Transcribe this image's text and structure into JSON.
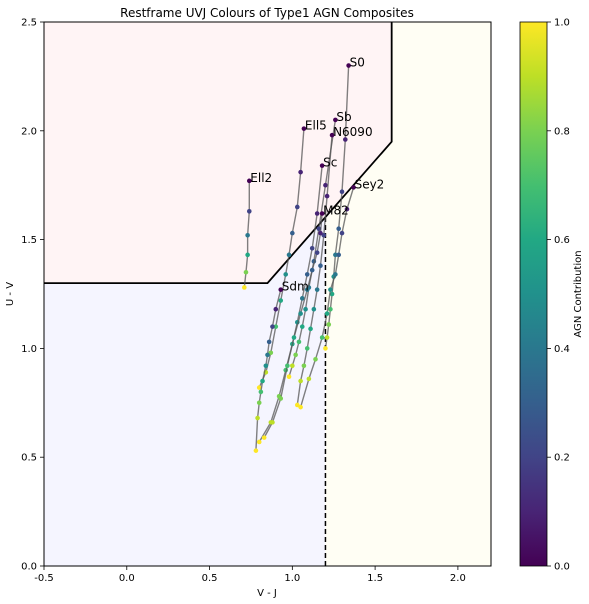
{
  "chart_data": {
    "type": "scatter",
    "title": "Restframe UVJ Colours of Type1 AGN Composites",
    "xlabel": "V - J",
    "ylabel": "U - V",
    "xlim": [
      -0.5,
      2.2
    ],
    "ylim": [
      0.0,
      2.5
    ],
    "xticks": [
      "-0.5",
      "0.0",
      "0.5",
      "1.0",
      "1.5",
      "2.0"
    ],
    "yticks": [
      "0.0",
      "0.5",
      "1.0",
      "1.5",
      "2.0",
      "2.5"
    ],
    "grid": false,
    "colorbar": {
      "label": "AGN Contribution",
      "range": [
        0.0,
        1.0
      ],
      "ticks": [
        "0.0",
        "0.2",
        "0.4",
        "0.6",
        "0.8",
        "1.0"
      ],
      "colormap": "viridis"
    },
    "regions": {
      "quiescent_boundary": [
        [
          -0.5,
          1.3
        ],
        [
          0.85,
          1.3
        ],
        [
          1.6,
          1.95
        ],
        [
          1.6,
          2.5
        ]
      ],
      "divider_line": {
        "x": 1.2,
        "y_range": [
          0.0,
          1.6
        ]
      },
      "colors": {
        "quiescent": "#fff4f5",
        "star_forming": "#f5f5ff",
        "dusty": "#fffef4"
      }
    },
    "series": [
      {
        "name": "S0",
        "label": "S0",
        "x": [
          1.34,
          1.32,
          1.3,
          1.28,
          1.26,
          1.25,
          1.24,
          1.23,
          1.22,
          1.21,
          1.2
        ],
        "y": [
          2.3,
          1.96,
          1.72,
          1.55,
          1.43,
          1.33,
          1.25,
          1.18,
          1.11,
          1.05,
          1.0
        ]
      },
      {
        "name": "Sb",
        "label": "Sb",
        "x": [
          1.26,
          1.2,
          1.16,
          1.13,
          1.1,
          1.08,
          1.06,
          1.04,
          1.02,
          1.0,
          0.98
        ],
        "y": [
          2.05,
          1.75,
          1.55,
          1.4,
          1.28,
          1.18,
          1.1,
          1.03,
          0.97,
          0.92,
          0.87
        ]
      },
      {
        "name": "N6090",
        "label": "N6090",
        "x": [
          1.24,
          1.21,
          1.19,
          1.17,
          1.15,
          1.13,
          1.11,
          1.09,
          1.07,
          1.05,
          1.03
        ],
        "y": [
          1.98,
          1.7,
          1.52,
          1.38,
          1.27,
          1.18,
          1.09,
          1.0,
          0.92,
          0.85,
          0.74
        ]
      },
      {
        "name": "Ell5",
        "label": "Ell5",
        "x": [
          1.07,
          1.05,
          1.03,
          1.0,
          0.98,
          0.96,
          0.93,
          0.9,
          0.87,
          0.84,
          0.8
        ],
        "y": [
          2.01,
          1.81,
          1.65,
          1.53,
          1.43,
          1.34,
          1.22,
          1.1,
          0.98,
          0.89,
          0.82
        ]
      },
      {
        "name": "Sc",
        "label": "Sc",
        "x": [
          1.18,
          1.15,
          1.12,
          1.09,
          1.06,
          1.03,
          1.0,
          0.96,
          0.92,
          0.87,
          0.8
        ],
        "y": [
          1.84,
          1.62,
          1.46,
          1.34,
          1.23,
          1.12,
          1.02,
          0.9,
          0.78,
          0.66,
          0.57
        ]
      },
      {
        "name": "Ell2",
        "label": "Ell2",
        "x": [
          0.74,
          0.74,
          0.73,
          0.73,
          0.72,
          0.71
        ],
        "y": [
          1.77,
          1.63,
          1.52,
          1.43,
          1.35,
          1.28
        ]
      },
      {
        "name": "Sey2",
        "label": "Sey2",
        "x": [
          1.37,
          1.33,
          1.3,
          1.28,
          1.26,
          1.23,
          1.21,
          1.18,
          1.14,
          1.1,
          1.05
        ],
        "y": [
          1.74,
          1.64,
          1.53,
          1.43,
          1.34,
          1.27,
          1.16,
          1.05,
          0.95,
          0.86,
          0.73
        ]
      },
      {
        "name": "M82",
        "label": "M82",
        "x": [
          1.18,
          1.17,
          1.15,
          1.12,
          1.09,
          1.05,
          1.01,
          0.97,
          0.93,
          0.88,
          0.83
        ],
        "y": [
          1.62,
          1.53,
          1.44,
          1.36,
          1.27,
          1.16,
          1.05,
          0.92,
          0.77,
          0.66,
          0.59
        ]
      },
      {
        "name": "Sdm",
        "label": "Sdm",
        "x": [
          0.93,
          0.9,
          0.88,
          0.86,
          0.85,
          0.84,
          0.82,
          0.81,
          0.8,
          0.79,
          0.78
        ],
        "y": [
          1.27,
          1.18,
          1.1,
          1.03,
          0.97,
          0.92,
          0.85,
          0.8,
          0.75,
          0.68,
          0.53
        ]
      }
    ]
  }
}
